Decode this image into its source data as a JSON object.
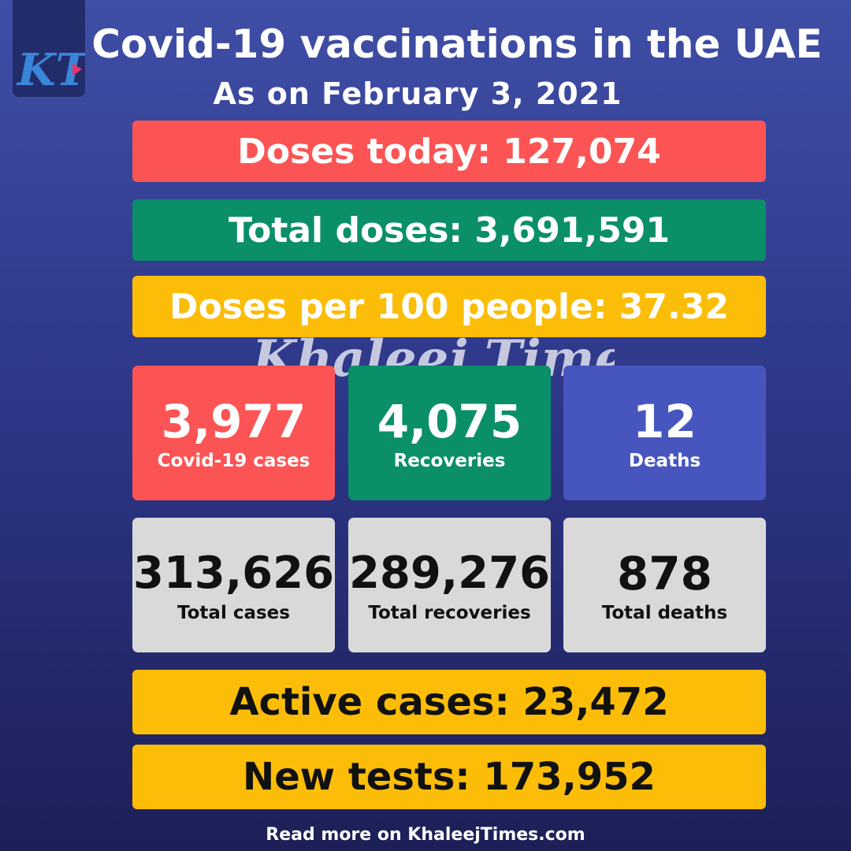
{
  "header": {
    "title": "Covid-19 vaccinations in the UAE",
    "subtitle": "As on February 3, 2021",
    "logo_text": "KT"
  },
  "vaccination": {
    "doses_today": "Doses today: 127,074",
    "total_doses": "Total doses: 3,691,591",
    "doses_per_100": "Doses per 100 people: 37.32"
  },
  "watermark": "Khaleej Times",
  "daily_stats": [
    {
      "value": "3,977",
      "label": "Covid-19 cases"
    },
    {
      "value": "4,075",
      "label": "Recoveries"
    },
    {
      "value": "12",
      "label": "Deaths"
    }
  ],
  "total_stats": [
    {
      "value": "313,626",
      "label": "Total cases"
    },
    {
      "value": "289,276",
      "label": "Total recoveries"
    },
    {
      "value": "878",
      "label": "Total deaths"
    }
  ],
  "summary": {
    "active_cases": "Active cases: 23,472",
    "new_tests": "New tests: 173,952"
  },
  "footer": "Read more on KhaleejTimes.com",
  "colors": {
    "background_top": "#3f4ea6",
    "background_bottom": "#1d1f57",
    "red": "#fc5454",
    "green": "#0b8f69",
    "yellow": "#fbbd07",
    "blue": "#4756bf",
    "gray": "#d9d9d9"
  }
}
